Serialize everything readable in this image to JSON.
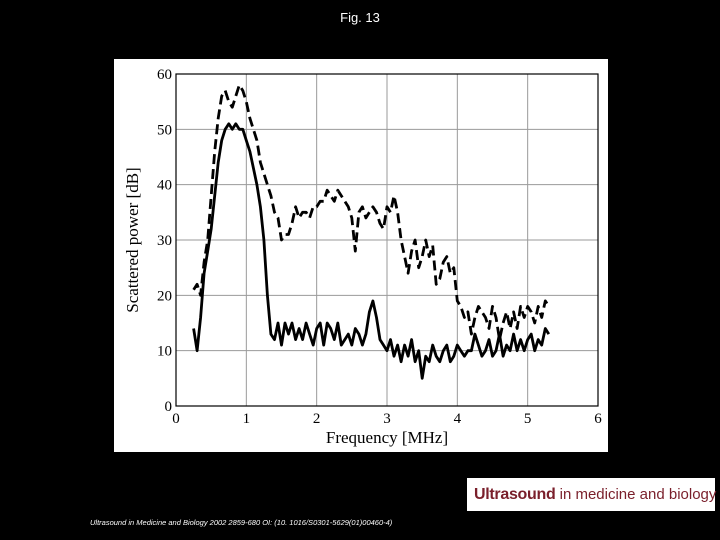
{
  "slide": {
    "title": "Fig. 13",
    "citation": "Ultrasound in Medicine and Biology 2002 2859-680 OI: (10. 1016/S0301-5629(01)00460-4)"
  },
  "logo": {
    "bold_text": "Ultrasound",
    "rest_text": " in medicine and biology",
    "color": "#7a1f2b"
  },
  "chart_data": {
    "type": "line",
    "title": "",
    "xlabel": "Frequency [MHz]",
    "ylabel": "Scattered power [dB]",
    "xlim": [
      0,
      6
    ],
    "ylim": [
      0,
      60
    ],
    "xticks": [
      0,
      1,
      2,
      3,
      4,
      5,
      6
    ],
    "yticks": [
      0,
      10,
      20,
      30,
      40,
      50,
      60
    ],
    "grid": true,
    "series": [
      {
        "style": "dashed",
        "color": "#000000",
        "x": [
          0.25,
          0.3,
          0.35,
          0.4,
          0.45,
          0.5,
          0.55,
          0.6,
          0.65,
          0.7,
          0.75,
          0.8,
          0.85,
          0.9,
          0.95,
          1.0,
          1.05,
          1.1,
          1.15,
          1.2,
          1.25,
          1.3,
          1.35,
          1.4,
          1.45,
          1.5,
          1.55,
          1.6,
          1.65,
          1.7,
          1.75,
          1.8,
          1.85,
          1.9,
          1.95,
          2.0,
          2.05,
          2.1,
          2.15,
          2.2,
          2.25,
          2.3,
          2.35,
          2.4,
          2.45,
          2.5,
          2.55,
          2.6,
          2.65,
          2.7,
          2.75,
          2.8,
          2.85,
          2.9,
          2.95,
          3.0,
          3.05,
          3.1,
          3.15,
          3.2,
          3.25,
          3.3,
          3.35,
          3.4,
          3.45,
          3.5,
          3.55,
          3.6,
          3.65,
          3.7,
          3.75,
          3.8,
          3.85,
          3.9,
          3.95,
          4.0,
          4.05,
          4.1,
          4.15,
          4.2,
          4.25,
          4.3,
          4.35,
          4.4,
          4.45,
          4.5,
          4.55,
          4.6,
          4.65,
          4.7,
          4.75,
          4.8,
          4.85,
          4.9,
          4.95,
          5.0,
          5.05,
          5.1,
          5.15,
          5.2,
          5.25,
          5.3
        ],
        "y": [
          21,
          22,
          20,
          26,
          30,
          38,
          46,
          52,
          56,
          57,
          55,
          54,
          56,
          58,
          57,
          55,
          52,
          50,
          48,
          44,
          42,
          40,
          38,
          35,
          34,
          30,
          31,
          31,
          33,
          36,
          34,
          35,
          35,
          34,
          36,
          36,
          37,
          37,
          39,
          38,
          37,
          39,
          38,
          37,
          36,
          34,
          28,
          35,
          36,
          34,
          35,
          36,
          35,
          33,
          32,
          36,
          35,
          38,
          35,
          30,
          27,
          24,
          28,
          30,
          25,
          27,
          30,
          27,
          29,
          22,
          23,
          26,
          27,
          24,
          25,
          19,
          18,
          16,
          17,
          13,
          16,
          18,
          17,
          16,
          14,
          18,
          16,
          12,
          15,
          17,
          14,
          17,
          14,
          18,
          16,
          18,
          17,
          15,
          18,
          16,
          19,
          18
        ]
      },
      {
        "style": "solid",
        "color": "#000000",
        "x": [
          0.25,
          0.3,
          0.35,
          0.4,
          0.45,
          0.5,
          0.55,
          0.6,
          0.65,
          0.7,
          0.75,
          0.8,
          0.85,
          0.9,
          0.95,
          1.0,
          1.05,
          1.1,
          1.15,
          1.2,
          1.25,
          1.3,
          1.35,
          1.4,
          1.45,
          1.5,
          1.55,
          1.6,
          1.65,
          1.7,
          1.75,
          1.8,
          1.85,
          1.9,
          1.95,
          2.0,
          2.05,
          2.1,
          2.15,
          2.2,
          2.25,
          2.3,
          2.35,
          2.4,
          2.45,
          2.5,
          2.55,
          2.6,
          2.65,
          2.7,
          2.75,
          2.8,
          2.85,
          2.9,
          2.95,
          3.0,
          3.05,
          3.1,
          3.15,
          3.2,
          3.25,
          3.3,
          3.35,
          3.4,
          3.45,
          3.5,
          3.55,
          3.6,
          3.65,
          3.7,
          3.75,
          3.8,
          3.85,
          3.9,
          3.95,
          4.0,
          4.05,
          4.1,
          4.15,
          4.2,
          4.25,
          4.3,
          4.35,
          4.4,
          4.45,
          4.5,
          4.55,
          4.6,
          4.65,
          4.7,
          4.75,
          4.8,
          4.85,
          4.9,
          4.95,
          5.0,
          5.05,
          5.1,
          5.15,
          5.2,
          5.25,
          5.3
        ],
        "y": [
          14,
          10,
          16,
          24,
          28,
          32,
          38,
          44,
          48,
          50,
          51,
          50,
          51,
          50,
          50,
          48,
          46,
          43,
          40,
          36,
          30,
          20,
          13,
          12,
          15,
          11,
          15,
          13,
          15,
          12,
          14,
          12,
          15,
          13,
          11,
          14,
          15,
          11,
          15,
          14,
          12,
          15,
          11,
          12,
          13,
          11,
          14,
          13,
          11,
          13,
          17,
          19,
          16,
          12,
          11,
          10,
          12,
          9,
          11,
          8,
          11,
          9,
          12,
          8,
          10,
          5,
          9,
          8,
          11,
          9,
          8,
          10,
          11,
          8,
          9,
          11,
          10,
          9,
          10,
          10,
          13,
          11,
          9,
          10,
          12,
          9,
          10,
          13,
          9,
          11,
          10,
          13,
          10,
          12,
          10,
          12,
          13,
          10,
          12,
          11,
          14,
          13
        ]
      }
    ]
  }
}
